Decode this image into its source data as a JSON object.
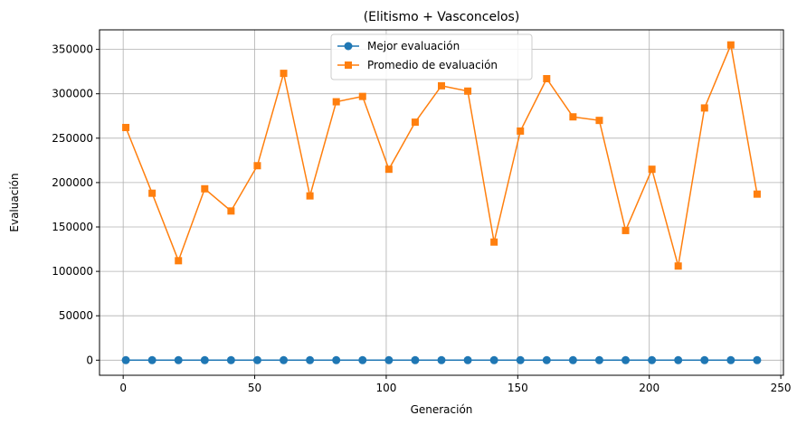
{
  "chart_data": {
    "type": "line",
    "title": "(Elitismo + Vasconcelos)",
    "xlabel": "Generación",
    "ylabel": "Evaluación",
    "xlim": [
      -9,
      251
    ],
    "ylim": [
      -17000,
      372000
    ],
    "xticks": [
      0,
      50,
      100,
      150,
      200,
      250
    ],
    "yticks": [
      0,
      50000,
      100000,
      150000,
      200000,
      250000,
      300000,
      350000
    ],
    "grid": true,
    "legend_position": "top-center",
    "x": [
      1,
      11,
      21,
      31,
      41,
      51,
      61,
      71,
      81,
      91,
      101,
      111,
      121,
      131,
      141,
      151,
      161,
      171,
      181,
      191,
      201,
      211,
      221,
      231,
      241
    ],
    "series": [
      {
        "name": "Mejor evaluación",
        "color": "#1f77b4",
        "marker": "circle",
        "values": [
          0,
          0,
          0,
          0,
          0,
          0,
          0,
          0,
          0,
          0,
          0,
          0,
          0,
          0,
          0,
          0,
          0,
          0,
          0,
          0,
          0,
          0,
          0,
          0,
          0
        ]
      },
      {
        "name": "Promedio de evaluación",
        "color": "#ff7f0e",
        "marker": "square",
        "values": [
          262000,
          188000,
          112000,
          193000,
          168000,
          219000,
          323000,
          185000,
          291000,
          297000,
          215000,
          268000,
          309000,
          303000,
          133000,
          258000,
          317000,
          274000,
          270000,
          146000,
          215000,
          106000,
          284000,
          355000,
          187000
        ]
      }
    ]
  }
}
